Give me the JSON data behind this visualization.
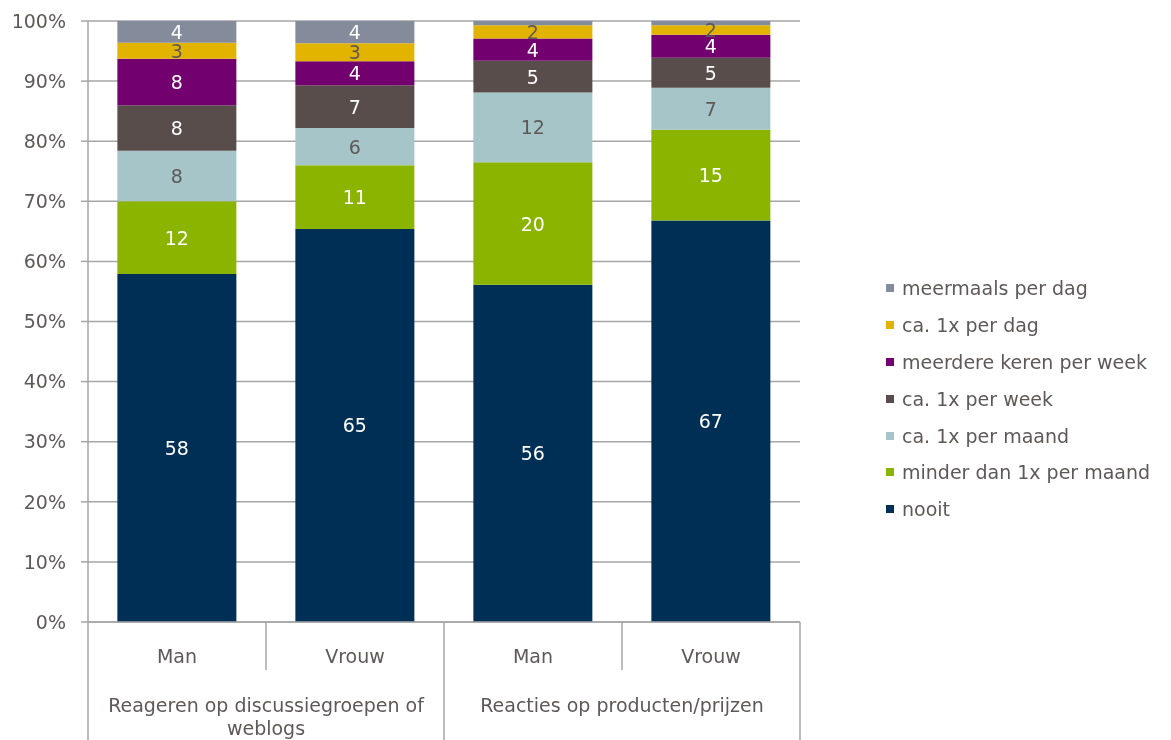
{
  "chart_data": {
    "type": "bar",
    "stacked": true,
    "categories": [
      "Man",
      "Vrouw",
      "Man",
      "Vrouw"
    ],
    "annotations": [
      "Reageren op discussiegroepen of weblogs",
      "Reacties op producten/prijzen"
    ],
    "series": [
      {
        "name": "nooit",
        "color": "#002f56",
        "values": [
          57.9,
          65.4,
          56.1,
          66.8
        ],
        "value_labels": [
          "58",
          "65",
          "56",
          "67"
        ]
      },
      {
        "name": "minder dan 1x per maand",
        "color": "#8ab400",
        "values": [
          12.1,
          10.6,
          20.4,
          15.1
        ],
        "value_labels": [
          "12",
          "11",
          "20",
          "15"
        ]
      },
      {
        "name": "ca. 1x per maand",
        "color": "#a5c5c9",
        "values": [
          8.4,
          6.2,
          11.6,
          7.0
        ],
        "value_labels": [
          "8",
          "6",
          "12",
          "7"
        ]
      },
      {
        "name": "ca. 1x per week",
        "color": "#594d4c",
        "values": [
          7.6,
          7.1,
          5.3,
          5.0
        ],
        "value_labels": [
          "8",
          "7",
          "5",
          "5"
        ]
      },
      {
        "name": "meerdere keren per week",
        "color": "#72006e",
        "values": [
          7.7,
          4.0,
          3.7,
          3.8
        ],
        "value_labels": [
          "8",
          "4",
          "4",
          "4"
        ]
      },
      {
        "name": "ca. 1x per dag",
        "color": "#e2b400",
        "values": [
          2.7,
          3.0,
          2.2,
          1.6
        ],
        "value_labels": [
          "3",
          "3",
          "2",
          "2"
        ]
      },
      {
        "name": "meermaals per dag",
        "color": "#848b9b",
        "values": [
          3.6,
          3.7,
          0.7,
          0.7
        ],
        "value_labels": [
          "4",
          "4",
          null,
          null
        ]
      }
    ],
    "ylim": [
      0,
      100
    ],
    "yticks": [
      {
        "value": 0,
        "label": "0%"
      },
      {
        "value": 10,
        "label": "10%"
      },
      {
        "value": 20,
        "label": "20%"
      },
      {
        "value": 30,
        "label": "30%"
      },
      {
        "value": 40,
        "label": "40%"
      },
      {
        "value": 50,
        "label": "50%"
      },
      {
        "value": 60,
        "label": "60%"
      },
      {
        "value": 70,
        "label": "70%"
      },
      {
        "value": 80,
        "label": "80%"
      },
      {
        "value": 90,
        "label": "90%"
      },
      {
        "value": 100,
        "label": "100%"
      }
    ],
    "grid": "y",
    "legend": "right"
  }
}
